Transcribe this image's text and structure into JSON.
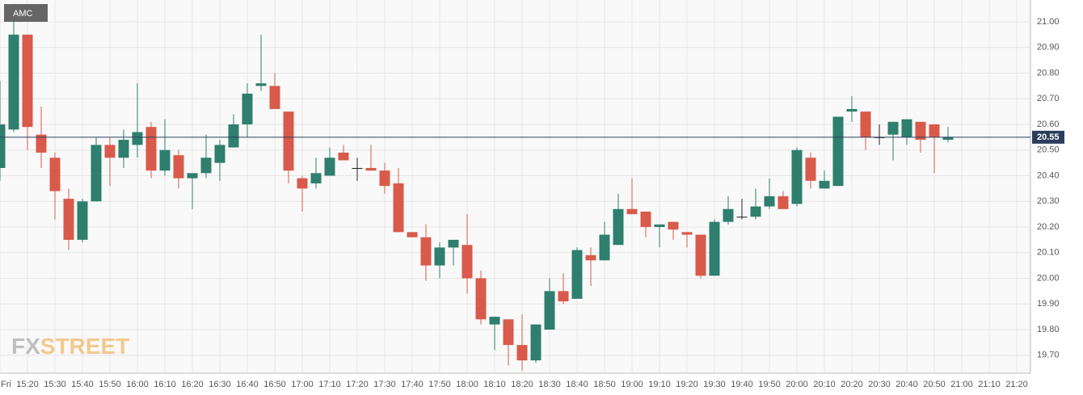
{
  "chart_data": {
    "type": "candlestick",
    "title": "AMC",
    "watermark": [
      "FX",
      "STREET"
    ],
    "x": [
      "15:10",
      "15:15",
      "15:20",
      "15:25",
      "15:30",
      "15:35",
      "15:40",
      "15:45",
      "15:50",
      "15:55",
      "16:00",
      "16:05",
      "16:10",
      "16:15",
      "16:20",
      "16:25",
      "16:30",
      "16:35",
      "16:40",
      "16:45",
      "16:50",
      "16:55",
      "17:00",
      "17:05",
      "17:10",
      "17:15",
      "17:20",
      "17:25",
      "17:30",
      "17:35",
      "17:40",
      "17:45",
      "17:50",
      "17:55",
      "18:00",
      "18:05",
      "18:10",
      "18:15",
      "18:20",
      "18:25",
      "18:30",
      "18:35",
      "18:40",
      "18:45",
      "18:50",
      "18:55",
      "19:00",
      "19:05",
      "19:10",
      "19:15",
      "19:20",
      "19:25",
      "19:30",
      "19:35",
      "19:40",
      "19:45",
      "19:50",
      "19:55",
      "20:00",
      "20:05",
      "20:10",
      "20:15",
      "20:20",
      "20:25",
      "20:30",
      "20:35",
      "20:40",
      "20:45",
      "20:50",
      "20:55"
    ],
    "open": [
      20.43,
      20.58,
      20.95,
      20.56,
      20.47,
      20.31,
      20.15,
      20.3,
      20.52,
      20.47,
      20.52,
      20.59,
      20.42,
      20.48,
      20.39,
      20.41,
      20.45,
      20.51,
      20.6,
      20.75,
      20.75,
      20.65,
      20.39,
      20.37,
      20.4,
      20.49,
      20.43,
      20.43,
      20.42,
      20.37,
      20.18,
      20.16,
      20.05,
      20.12,
      20.13,
      20.0,
      19.82,
      19.84,
      19.74,
      19.68,
      19.8,
      19.95,
      19.92,
      20.09,
      20.07,
      20.13,
      20.27,
      20.26,
      20.2,
      20.22,
      20.18,
      20.17,
      20.01,
      20.22,
      20.24,
      20.24,
      20.28,
      20.32,
      20.29,
      20.47,
      20.35,
      20.36,
      20.65,
      20.65,
      20.55,
      20.56,
      20.55,
      20.61,
      20.6,
      20.54
    ],
    "high": [
      20.77,
      21.07,
      20.95,
      20.67,
      20.49,
      20.35,
      20.31,
      20.55,
      20.55,
      20.58,
      20.76,
      20.61,
      20.62,
      20.5,
      20.41,
      20.56,
      20.54,
      20.64,
      20.76,
      20.95,
      20.8,
      20.65,
      20.4,
      20.47,
      20.51,
      20.52,
      20.47,
      20.52,
      20.45,
      20.43,
      20.18,
      20.21,
      20.14,
      20.15,
      20.25,
      20.03,
      19.85,
      19.84,
      19.86,
      19.82,
      20.0,
      20.02,
      20.12,
      20.12,
      20.22,
      20.33,
      20.39,
      20.26,
      20.21,
      20.22,
      20.18,
      20.17,
      20.23,
      20.32,
      20.31,
      20.35,
      20.39,
      20.34,
      20.51,
      20.49,
      20.42,
      20.63,
      20.71,
      20.65,
      20.6,
      20.61,
      20.62,
      20.61,
      20.6,
      20.59
    ],
    "low": [
      20.38,
      20.57,
      20.5,
      20.43,
      20.23,
      20.11,
      20.14,
      20.3,
      20.36,
      20.43,
      20.47,
      20.39,
      20.4,
      20.35,
      20.27,
      20.39,
      20.38,
      20.51,
      20.55,
      20.73,
      20.66,
      20.37,
      20.26,
      20.35,
      20.4,
      20.46,
      20.38,
      20.42,
      20.33,
      20.18,
      20.16,
      19.99,
      20.0,
      20.05,
      19.94,
      19.82,
      19.72,
      19.66,
      19.64,
      19.67,
      19.8,
      19.9,
      19.92,
      19.97,
      20.07,
      20.13,
      20.25,
      20.16,
      20.12,
      20.15,
      20.12,
      20.0,
      20.01,
      20.21,
      20.23,
      20.23,
      20.27,
      20.27,
      20.28,
      20.35,
      20.35,
      20.36,
      20.61,
      20.5,
      20.52,
      20.46,
      20.52,
      20.49,
      20.41,
      20.53
    ],
    "close": [
      20.6,
      20.95,
      20.59,
      20.49,
      20.34,
      20.15,
      20.3,
      20.52,
      20.47,
      20.54,
      20.57,
      20.42,
      20.5,
      20.39,
      20.41,
      20.47,
      20.52,
      20.6,
      20.72,
      20.76,
      20.66,
      20.42,
      20.35,
      20.41,
      20.47,
      20.46,
      20.43,
      20.42,
      20.36,
      20.18,
      20.16,
      20.05,
      20.12,
      20.15,
      20.0,
      19.84,
      19.85,
      19.74,
      19.68,
      19.82,
      19.95,
      19.91,
      20.11,
      20.07,
      20.17,
      20.27,
      20.25,
      20.2,
      20.21,
      20.19,
      20.17,
      20.01,
      20.22,
      20.27,
      20.24,
      20.28,
      20.32,
      20.27,
      20.5,
      20.38,
      20.38,
      20.63,
      20.66,
      20.55,
      20.55,
      20.61,
      20.62,
      20.54,
      20.55,
      20.55
    ],
    "up_color": "#2e7f6d",
    "down_color": "#d95a4a",
    "flat_color": "#222222",
    "last_price": 20.55,
    "last_price_color": "#2b3f5c",
    "xlim": [
      "15:10",
      "21:25"
    ],
    "xticks": [
      {
        "value": "15:10",
        "label": "Fri"
      },
      "15:20",
      "15:30",
      "15:40",
      "15:50",
      "16:00",
      "16:10",
      "16:20",
      "16:30",
      "16:40",
      "16:50",
      "17:00",
      "17:10",
      "17:20",
      "17:30",
      "17:40",
      "17:50",
      "18:00",
      "18:10",
      "18:20",
      "18:30",
      "18:40",
      "18:50",
      "19:00",
      "19:10",
      "19:20",
      "19:30",
      "19:40",
      "19:50",
      "20:00",
      "20:10",
      "20:20",
      "20:30",
      "20:40",
      "20:50",
      "21:00",
      "21:10",
      "21:20"
    ],
    "ylim": [
      19.63,
      21.085
    ],
    "yticks": [
      {
        "value": 19.7,
        "label": "19.70"
      },
      {
        "value": 19.8,
        "label": "19.80"
      },
      {
        "value": 19.9,
        "label": "19.90"
      },
      {
        "value": 20.0,
        "label": "20.00"
      },
      {
        "value": 20.1,
        "label": "20.10"
      },
      {
        "value": 20.2,
        "label": "20.20"
      },
      {
        "value": 20.3,
        "label": "20.30"
      },
      {
        "value": 20.4,
        "label": "20.40"
      },
      {
        "value": 20.5,
        "label": "20.50"
      },
      {
        "value": 20.6,
        "label": "20.60"
      },
      {
        "value": 20.7,
        "label": "20.70"
      },
      {
        "value": 20.8,
        "label": "20.80"
      },
      {
        "value": 20.9,
        "label": "20.90"
      },
      {
        "value": 21.0,
        "label": "21.00"
      }
    ],
    "grid": true
  }
}
